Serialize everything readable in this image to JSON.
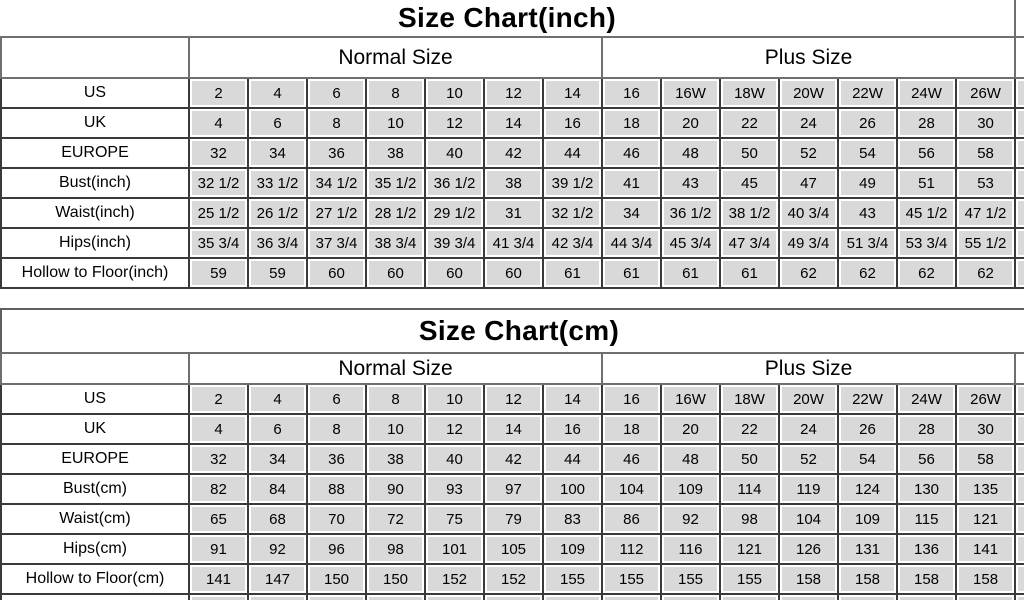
{
  "colors": {
    "background": "#ffffff",
    "cell_fill": "#d9d9d9",
    "cell_inner_sliver": "#ffffff",
    "grid_line": "#3a3a3a",
    "frame_line": "#6f6f6f",
    "text": "#000000"
  },
  "chart_data": [
    {
      "type": "table",
      "title": "Size Chart(inch)",
      "corner_label": "",
      "group_headers": [
        {
          "label": "Normal Size",
          "span": 7
        },
        {
          "label": "Plus Size",
          "span": 7
        }
      ],
      "rows": [
        {
          "label": "US",
          "values": [
            "2",
            "4",
            "6",
            "8",
            "10",
            "12",
            "14",
            "16",
            "16W",
            "18W",
            "20W",
            "22W",
            "24W",
            "26W"
          ]
        },
        {
          "label": "UK",
          "values": [
            "4",
            "6",
            "8",
            "10",
            "12",
            "14",
            "16",
            "18",
            "20",
            "22",
            "24",
            "26",
            "28",
            "30"
          ]
        },
        {
          "label": "EUROPE",
          "values": [
            "32",
            "34",
            "36",
            "38",
            "40",
            "42",
            "44",
            "46",
            "48",
            "50",
            "52",
            "54",
            "56",
            "58"
          ]
        },
        {
          "label": "Bust(inch)",
          "values": [
            "32 1/2",
            "33 1/2",
            "34 1/2",
            "35 1/2",
            "36 1/2",
            "38",
            "39 1/2",
            "41",
            "43",
            "45",
            "47",
            "49",
            "51",
            "53"
          ]
        },
        {
          "label": "Waist(inch)",
          "values": [
            "25 1/2",
            "26 1/2",
            "27 1/2",
            "28 1/2",
            "29 1/2",
            "31",
            "32 1/2",
            "34",
            "36 1/2",
            "38 1/2",
            "40 3/4",
            "43",
            "45 1/2",
            "47 1/2"
          ]
        },
        {
          "label": "Hips(inch)",
          "values": [
            "35 3/4",
            "36 3/4",
            "37 3/4",
            "38 3/4",
            "39 3/4",
            "41 3/4",
            "42 3/4",
            "44 3/4",
            "45 3/4",
            "47 3/4",
            "49 3/4",
            "51 3/4",
            "53 3/4",
            "55 1/2"
          ]
        },
        {
          "label": "Hollow to Floor(inch)",
          "values": [
            "59",
            "59",
            "60",
            "60",
            "60",
            "60",
            "61",
            "61",
            "61",
            "61",
            "62",
            "62",
            "62",
            "62"
          ]
        }
      ],
      "clipped_right_column": true,
      "clipped_bottom_row": false
    },
    {
      "type": "table",
      "title": "Size Chart(cm)",
      "corner_label": "",
      "group_headers": [
        {
          "label": "Normal Size",
          "span": 7
        },
        {
          "label": "Plus Size",
          "span": 7
        }
      ],
      "rows": [
        {
          "label": "US",
          "values": [
            "2",
            "4",
            "6",
            "8",
            "10",
            "12",
            "14",
            "16",
            "16W",
            "18W",
            "20W",
            "22W",
            "24W",
            "26W"
          ]
        },
        {
          "label": "UK",
          "values": [
            "4",
            "6",
            "8",
            "10",
            "12",
            "14",
            "16",
            "18",
            "20",
            "22",
            "24",
            "26",
            "28",
            "30"
          ]
        },
        {
          "label": "EUROPE",
          "values": [
            "32",
            "34",
            "36",
            "38",
            "40",
            "42",
            "44",
            "46",
            "48",
            "50",
            "52",
            "54",
            "56",
            "58"
          ]
        },
        {
          "label": "Bust(cm)",
          "values": [
            "82",
            "84",
            "88",
            "90",
            "93",
            "97",
            "100",
            "104",
            "109",
            "114",
            "119",
            "124",
            "130",
            "135"
          ]
        },
        {
          "label": "Waist(cm)",
          "values": [
            "65",
            "68",
            "70",
            "72",
            "75",
            "79",
            "83",
            "86",
            "92",
            "98",
            "104",
            "109",
            "115",
            "121"
          ]
        },
        {
          "label": "Hips(cm)",
          "values": [
            "91",
            "92",
            "96",
            "98",
            "101",
            "105",
            "109",
            "112",
            "116",
            "121",
            "126",
            "131",
            "136",
            "141"
          ]
        },
        {
          "label": "Hollow to Floor(cm)",
          "values": [
            "141",
            "147",
            "150",
            "150",
            "152",
            "152",
            "155",
            "155",
            "155",
            "155",
            "158",
            "158",
            "158",
            "158"
          ]
        }
      ],
      "clipped_right_column": true,
      "clipped_bottom_row": true
    }
  ]
}
